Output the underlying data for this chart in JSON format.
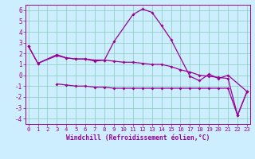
{
  "bg_color": "#cceeff",
  "grid_color": "#88ccbb",
  "line_color": "#990099",
  "xlabel": "Windchill (Refroidissement éolien,°C)",
  "ylim": [
    -4.5,
    6.5
  ],
  "yticks": [
    -4,
    -3,
    -2,
    -1,
    0,
    1,
    2,
    3,
    4,
    5,
    6
  ],
  "xticks": [
    0,
    1,
    2,
    3,
    4,
    5,
    6,
    7,
    8,
    9,
    10,
    11,
    12,
    13,
    14,
    15,
    16,
    17,
    18,
    19,
    20,
    21,
    22,
    23
  ],
  "xlim": [
    -0.3,
    23.3
  ],
  "curve1_x": [
    0,
    1,
    3,
    4,
    5,
    6,
    7,
    8,
    9,
    11,
    12,
    13,
    14,
    15,
    17,
    18,
    19,
    20,
    21,
    23
  ],
  "curve1_y": [
    2.7,
    1.1,
    1.9,
    1.6,
    1.5,
    1.5,
    1.3,
    1.4,
    3.1,
    5.6,
    6.1,
    5.8,
    4.6,
    3.3,
    -0.1,
    -0.5,
    0.1,
    -0.3,
    0.0,
    -1.5
  ],
  "curve2_x": [
    0,
    1,
    3,
    4,
    5,
    6,
    7,
    8,
    9,
    10,
    11,
    12,
    13,
    14,
    15,
    16,
    17,
    18,
    19,
    20,
    21,
    22,
    23
  ],
  "curve2_y": [
    2.7,
    1.1,
    1.8,
    1.6,
    1.5,
    1.5,
    1.4,
    1.4,
    1.3,
    1.2,
    1.2,
    1.1,
    1.0,
    1.0,
    0.8,
    0.5,
    0.3,
    0.0,
    -0.1,
    -0.2,
    -0.3,
    -3.7,
    -1.5
  ],
  "curve3_x": [
    3,
    4,
    5,
    6,
    7,
    8,
    9,
    10,
    11,
    12,
    13,
    14,
    15,
    16,
    17,
    18,
    19,
    20,
    21,
    22,
    23
  ],
  "curve3_y": [
    -0.8,
    -0.9,
    -1.0,
    -1.0,
    -1.1,
    -1.1,
    -1.2,
    -1.2,
    -1.2,
    -1.2,
    -1.2,
    -1.2,
    -1.2,
    -1.2,
    -1.2,
    -1.2,
    -1.2,
    -1.2,
    -1.2,
    -3.7,
    -1.5
  ],
  "marker_size": 2.0,
  "linewidth": 0.9,
  "tick_fontsize": 5.2,
  "xlabel_fontsize": 5.8
}
